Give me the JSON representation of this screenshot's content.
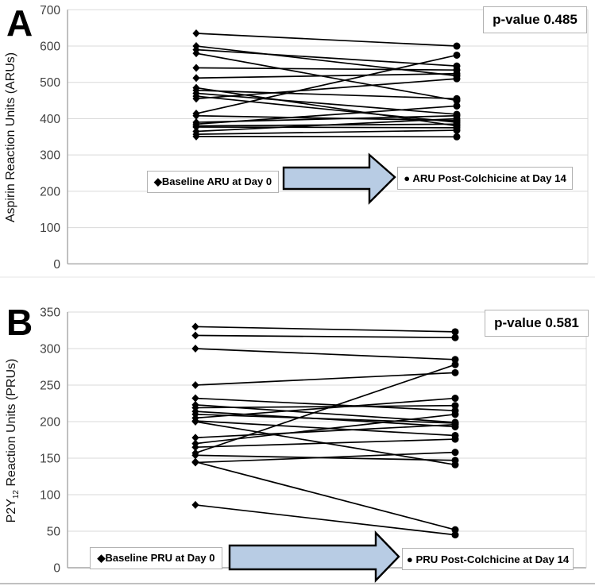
{
  "figure": {
    "arrow_color": "#b8cce4",
    "line_color": "#000000",
    "gridline_color": "#d9d9d9",
    "panels": [
      {
        "letter": "A",
        "ylabel_main": "Aspirin Reaction Units (ARUs)",
        "ylabel_sub": "",
        "ylabel_rest": "",
        "p_value": "p-value 0.485",
        "left_label": "◆Baseline ARU at Day 0",
        "right_label": "● ARU Post-Colchicine at Day 14"
      },
      {
        "letter": "B",
        "ylabel_main": "P2Y",
        "ylabel_sub": "12",
        "ylabel_rest": " Reaction Units (PRUs)",
        "p_value": "p-value 0.581",
        "left_label": "◆Baseline PRU at Day 0",
        "right_label": "● PRU Post-Colchicine at Day 14"
      }
    ]
  },
  "chart_data": [
    {
      "type": "line",
      "subtype": "paired-slope",
      "panel": "A",
      "title": "",
      "xlabel": "",
      "ylabel": "Aspirin Reaction Units (ARUs)",
      "annotation": "p-value 0.485",
      "ylim": [
        0,
        700
      ],
      "yticks": [
        0,
        100,
        200,
        300,
        400,
        500,
        600,
        700
      ],
      "grid": true,
      "categories": [
        "Baseline ARU at Day 0",
        "ARU Post-Colchicine at Day 14"
      ],
      "marker_left": "diamond",
      "marker_right": "circle",
      "pairs": [
        [
          635,
          600
        ],
        [
          600,
          518
        ],
        [
          590,
          545
        ],
        [
          580,
          450
        ],
        [
          540,
          534
        ],
        [
          512,
          524
        ],
        [
          485,
          380
        ],
        [
          478,
          455
        ],
        [
          470,
          412
        ],
        [
          462,
          390
        ],
        [
          455,
          510
        ],
        [
          414,
          575
        ],
        [
          408,
          395
        ],
        [
          390,
          408
        ],
        [
          385,
          435
        ],
        [
          380,
          385
        ],
        [
          377,
          375
        ],
        [
          365,
          400
        ],
        [
          357,
          368
        ],
        [
          351,
          350
        ]
      ]
    },
    {
      "type": "line",
      "subtype": "paired-slope",
      "panel": "B",
      "title": "",
      "xlabel": "",
      "ylabel": "P2Y12 Reaction Units (PRUs)",
      "annotation": "p-value 0.581",
      "ylim": [
        0,
        350
      ],
      "yticks": [
        0,
        50,
        100,
        150,
        200,
        250,
        300,
        350
      ],
      "grid": true,
      "categories": [
        "Baseline PRU at Day 0",
        "PRU Post-Colchicine at Day 14"
      ],
      "marker_left": "diamond",
      "marker_right": "circle",
      "pairs": [
        [
          330,
          323
        ],
        [
          318,
          315
        ],
        [
          300,
          285
        ],
        [
          250,
          267
        ],
        [
          232,
          215
        ],
        [
          223,
          199
        ],
        [
          219,
          222
        ],
        [
          214,
          193
        ],
        [
          210,
          198
        ],
        [
          205,
          232
        ],
        [
          201,
          181
        ],
        [
          200,
          141
        ],
        [
          178,
          196
        ],
        [
          170,
          210
        ],
        [
          165,
          176
        ],
        [
          157,
          278
        ],
        [
          154,
          147
        ],
        [
          145,
          52
        ],
        [
          144,
          158
        ],
        [
          86,
          45
        ]
      ]
    }
  ]
}
